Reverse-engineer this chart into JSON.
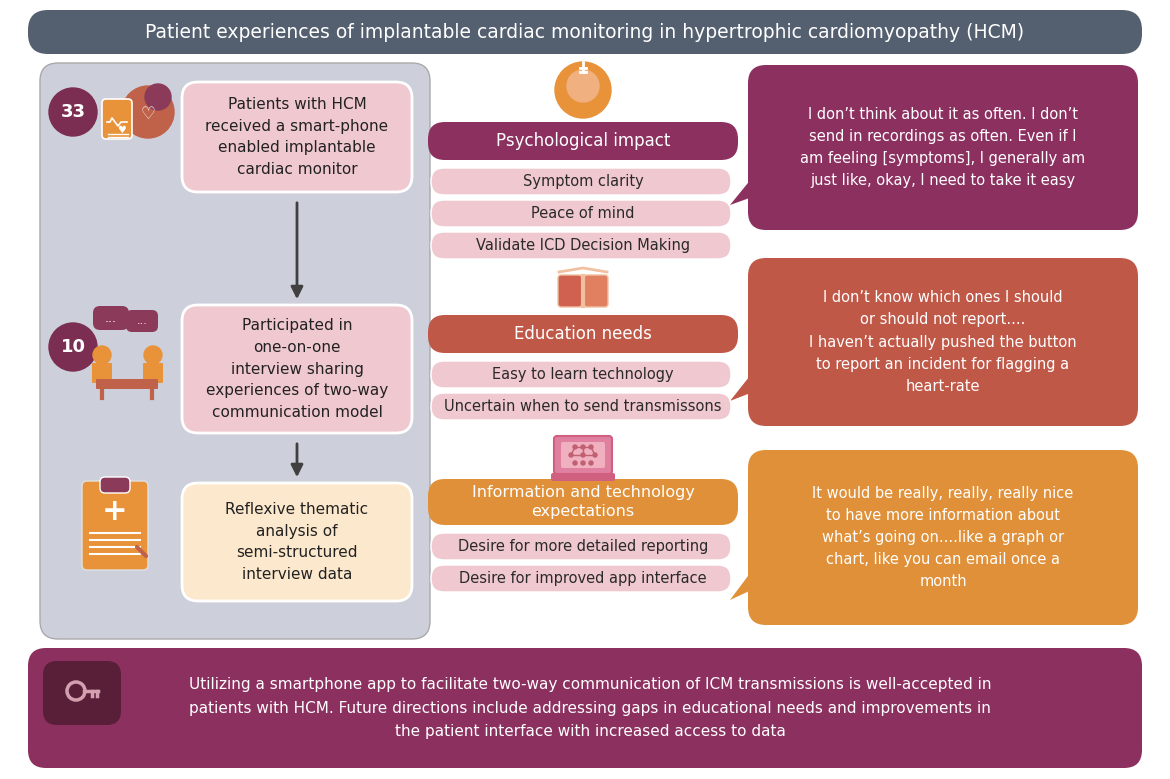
{
  "title": "Patient experiences of implantable cardiac monitoring in hypertrophic cardiomyopathy (HCM)",
  "title_bg": "#546070",
  "title_color": "#ffffff",
  "outer_bg": "#ffffff",
  "left_panel_bg": "#cdd0da",
  "left_box1_bg": "#f0c8d0",
  "left_box1_text": "Patients with HCM\nreceived a smart-phone\nenabled implantable\ncardiac monitor",
  "left_circle_color": "#7b2d52",
  "left_box2_bg": "#f0c8d0",
  "left_box2_text": "Participated in\none-on-one\ninterview sharing\nexperiences of two-way\ncommunication model",
  "left_box3_bg": "#fce8cc",
  "left_box3_text": "Reflexive thematic\nanalysis of\nsemi-structured\ninterview data",
  "mid_bg": "#ffffff",
  "mid_header1_bg": "#8c3060",
  "mid_header1_text": "Psychological impact",
  "mid_sub1_bg": "#f0c8d0",
  "mid_sub1": [
    "Symptom clarity",
    "Peace of mind",
    "Validate ICD Decision Making"
  ],
  "mid_header2_bg": "#c05848",
  "mid_header2_text": "Education needs",
  "mid_sub2_bg": "#f0c8d0",
  "mid_sub2": [
    "Easy to learn technology",
    "Uncertain when to send transmissons"
  ],
  "mid_header3_bg": "#e09038",
  "mid_header3_text": "Information and technology\nexpectations",
  "mid_sub3_bg": "#f0c8d0",
  "mid_sub3": [
    "Desire for more detailed reporting",
    "Desire for improved app interface"
  ],
  "quote1_bg": "#8c3060",
  "quote1_text": "I don’t think about it as often. I don’t\nsend in recordings as often. Even if I\nam feeling [symptoms], I generally am\njust like, okay, I need to take it easy",
  "quote2_bg": "#c05848",
  "quote2_text": "I don’t know which ones I should\nor should not report....\nI haven’t actually pushed the button\nto report an incident for flagging a\nheart-rate",
  "quote3_bg": "#e09038",
  "quote3_text": "It would be really, really, really nice\nto have more information about\nwhat’s going on....like a graph or\nchart, like you can email once a\nmonth",
  "footer_bg": "#8c3060",
  "footer_text": "Utilizing a smartphone app to facilitate two-way communication of ICM transmissions is well-accepted in\npatients with HCM. Future directions include addressing gaps in educational needs and improvements in\nthe patient interface with increased access to data",
  "icon_orange": "#e8923a",
  "icon_rose": "#c0614a",
  "icon_purple": "#8b3a5a",
  "arrow_color": "#404040",
  "num33": "33",
  "num10": "10"
}
